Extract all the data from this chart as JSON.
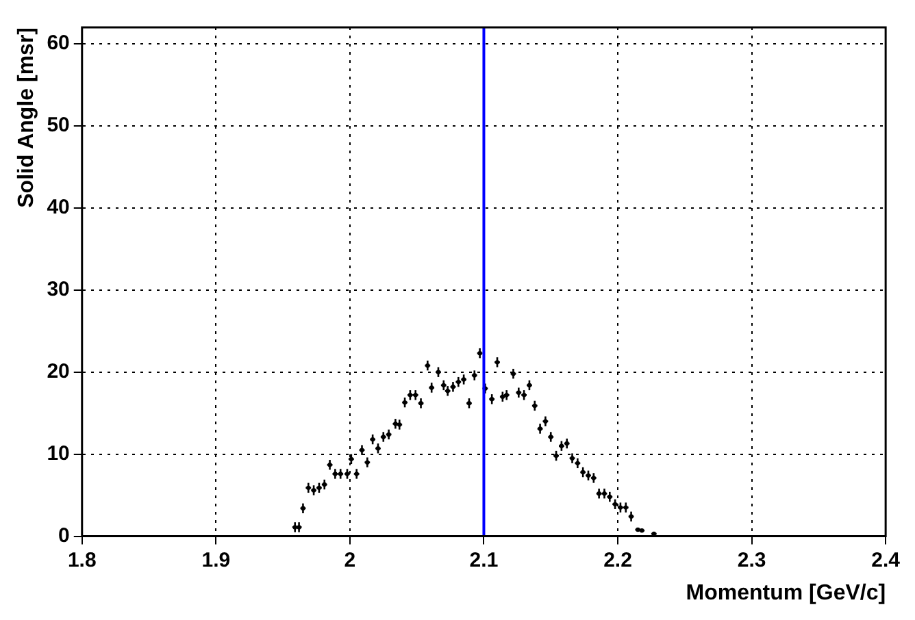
{
  "chart_data": {
    "type": "scatter",
    "xlabel": "Momentum [GeV/c]",
    "ylabel": "Solid Angle [msr]",
    "xlim": [
      1.8,
      2.4
    ],
    "ylim": [
      0,
      62
    ],
    "xticks": [
      1.8,
      1.9,
      2,
      2.1,
      2.2,
      2.3,
      2.4
    ],
    "yticks": [
      0,
      10,
      20,
      30,
      40,
      50,
      60
    ],
    "grid": true,
    "ref_lines": [
      {
        "axis": "x",
        "value": 2.1,
        "color": "#0000ff"
      }
    ],
    "series": [
      {
        "color": "#000000",
        "x": [
          1.959,
          1.962,
          1.965,
          1.969,
          1.973,
          1.977,
          1.981,
          1.985,
          1.989,
          1.993,
          1.998,
          2.001,
          2.005,
          2.009,
          2.013,
          2.017,
          2.021,
          2.025,
          2.029,
          2.034,
          2.037,
          2.041,
          2.045,
          2.049,
          2.053,
          2.058,
          2.061,
          2.066,
          2.07,
          2.073,
          2.077,
          2.081,
          2.085,
          2.089,
          2.093,
          2.097,
          2.101,
          2.106,
          2.11,
          2.114,
          2.117,
          2.122,
          2.126,
          2.13,
          2.134,
          2.138,
          2.142,
          2.146,
          2.15,
          2.154,
          2.158,
          2.162,
          2.166,
          2.17,
          2.174,
          2.178,
          2.182,
          2.186,
          2.19,
          2.194,
          2.198,
          2.202,
          2.206,
          2.21,
          2.215,
          2.218,
          2.227
        ],
        "values": [
          1.1,
          1.1,
          3.4,
          5.9,
          5.6,
          5.9,
          6.3,
          8.7,
          7.6,
          7.6,
          7.6,
          9.4,
          7.6,
          10.5,
          9.0,
          11.8,
          10.7,
          12.1,
          12.4,
          13.7,
          13.6,
          16.3,
          17.2,
          17.2,
          16.2,
          20.8,
          18.1,
          20.0,
          18.4,
          17.7,
          18.2,
          18.8,
          19.1,
          16.2,
          19.6,
          22.3,
          18.0,
          16.7,
          21.2,
          17.0,
          17.2,
          19.8,
          17.5,
          17.2,
          18.4,
          15.9,
          13.1,
          14.0,
          12.1,
          9.8,
          11.0,
          11.3,
          9.5,
          8.9,
          7.8,
          7.4,
          7.1,
          5.2,
          5.2,
          4.8,
          3.9,
          3.5,
          3.5,
          2.4,
          0.8,
          0.7,
          0.3
        ],
        "errors": [
          0.6,
          0.6,
          0.6,
          0.6,
          0.6,
          0.6,
          0.6,
          0.6,
          0.6,
          0.6,
          0.6,
          0.6,
          0.6,
          0.6,
          0.6,
          0.6,
          0.6,
          0.6,
          0.6,
          0.6,
          0.6,
          0.6,
          0.6,
          0.6,
          0.6,
          0.6,
          0.6,
          0.6,
          0.6,
          0.6,
          0.6,
          0.6,
          0.6,
          0.6,
          0.6,
          0.6,
          0.6,
          0.6,
          0.6,
          0.6,
          0.6,
          0.6,
          0.6,
          0.6,
          0.6,
          0.6,
          0.6,
          0.6,
          0.6,
          0.6,
          0.6,
          0.6,
          0.6,
          0.6,
          0.6,
          0.6,
          0.6,
          0.6,
          0.6,
          0.6,
          0.6,
          0.6,
          0.6,
          0.6,
          null,
          null,
          null
        ],
        "xerrors": [
          0.002,
          0.002,
          0.002,
          0.002,
          0.002,
          0.002,
          0.002,
          0.002,
          0.002,
          0.002,
          0.002,
          0.002,
          0.002,
          0.002,
          0.002,
          0.002,
          0.002,
          0.002,
          0.002,
          0.002,
          0.002,
          0.002,
          0.002,
          0.002,
          0.002,
          0.002,
          0.002,
          0.002,
          0.002,
          0.002,
          0.002,
          0.002,
          0.002,
          0.002,
          0.002,
          0.002,
          0.002,
          0.002,
          0.002,
          0.002,
          0.002,
          0.002,
          0.002,
          0.002,
          0.002,
          0.002,
          0.002,
          0.002,
          0.002,
          0.002,
          0.002,
          0.002,
          0.002,
          0.002,
          0.002,
          0.002,
          0.002,
          0.002,
          0.002,
          0.002,
          0.002,
          0.002,
          0.002,
          0.002,
          0.002,
          0.002,
          0.002
        ]
      }
    ]
  }
}
